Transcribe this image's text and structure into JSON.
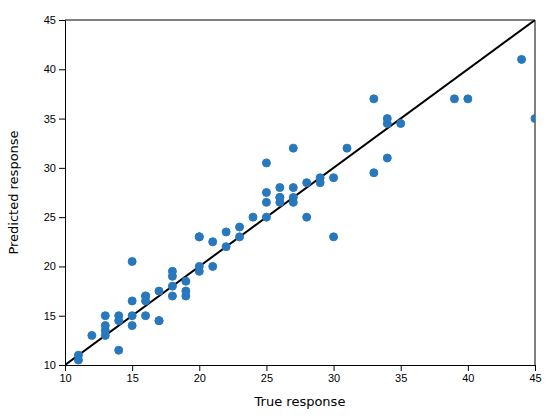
{
  "chart_data": {
    "type": "scatter",
    "xlabel": "True response",
    "ylabel": "Predicted response",
    "xlim": [
      10,
      45
    ],
    "ylim": [
      10,
      45
    ],
    "xticks": [
      10,
      15,
      20,
      25,
      30,
      35,
      40,
      45
    ],
    "yticks": [
      10,
      15,
      20,
      25,
      30,
      35,
      40,
      45
    ],
    "series": [
      {
        "type": "line",
        "color": "#000000",
        "x": [
          10,
          45
        ],
        "values": [
          10,
          45
        ]
      },
      {
        "type": "scatter",
        "color": "#2878BE",
        "x": [
          11,
          11,
          12,
          13,
          13,
          13,
          13,
          14,
          14,
          14,
          15,
          15,
          15,
          15,
          16,
          16,
          16,
          16,
          17,
          17,
          17,
          18,
          18,
          18,
          18,
          19,
          19,
          19,
          20,
          20,
          20,
          20,
          21,
          21,
          22,
          22,
          23,
          23,
          24,
          25,
          25,
          25,
          25,
          26,
          26,
          26,
          26,
          27,
          27,
          27,
          27,
          28,
          28,
          29,
          29,
          30,
          30,
          31,
          33,
          33,
          34,
          34,
          34,
          35,
          39,
          40,
          44,
          45
        ],
        "values": [
          11,
          10.5,
          13,
          13.5,
          13,
          14,
          15,
          14.5,
          15,
          11.5,
          15,
          14,
          16.5,
          20.5,
          16.5,
          17,
          17,
          15,
          14.5,
          17.5,
          14.5,
          18,
          19,
          17,
          19.5,
          17,
          17.5,
          18.5,
          19.5,
          20,
          23,
          23,
          22.5,
          20,
          22,
          23.5,
          24,
          23,
          25,
          26.5,
          25,
          27.5,
          30.5,
          27,
          26.5,
          28,
          27,
          27,
          28,
          26.5,
          32,
          28.5,
          25,
          28.5,
          29,
          23,
          29,
          32,
          37,
          29.5,
          35,
          34.5,
          31,
          34.5,
          37,
          37,
          41,
          35
        ]
      }
    ]
  }
}
